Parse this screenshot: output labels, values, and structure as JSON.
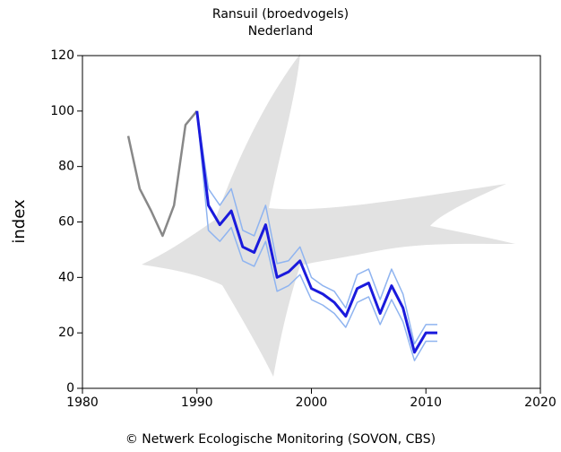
{
  "chart_data": {
    "type": "line",
    "title": "Ransuil (broedvogels)",
    "subtitle": "Nederland",
    "ylabel": "index",
    "footer": "© Netwerk Ecologische Monitoring (SOVON, CBS)",
    "xlim": [
      1980,
      2020
    ],
    "xticks": [
      1980,
      1990,
      2000,
      2010,
      2020
    ],
    "ylim": [
      0,
      120
    ],
    "yticks": [
      0,
      20,
      40,
      60,
      80,
      100,
      120
    ],
    "series": [
      {
        "color": "#888888",
        "width": 2.5,
        "x": [
          1984,
          1985,
          1986,
          1987,
          1988,
          1989,
          1990
        ],
        "values": [
          91,
          72,
          64,
          55,
          66,
          95,
          100
        ]
      },
      {
        "color": "#8fb4f0",
        "width": 1.5,
        "x": [
          1990,
          1991,
          1992,
          1993,
          1994,
          1995,
          1996,
          1997,
          1998,
          1999,
          2000,
          2001,
          2002,
          2003,
          2004,
          2005,
          2006,
          2007,
          2008,
          2009,
          2010,
          2011
        ],
        "values": [
          100,
          72,
          66,
          72,
          57,
          55,
          66,
          45,
          46,
          51,
          40,
          37,
          35,
          29,
          41,
          43,
          32,
          43,
          34,
          16,
          23,
          23
        ]
      },
      {
        "color": "#8fb4f0",
        "width": 1.5,
        "x": [
          1990,
          1991,
          1992,
          1993,
          1994,
          1995,
          1996,
          1997,
          1998,
          1999,
          2000,
          2001,
          2002,
          2003,
          2004,
          2005,
          2006,
          2007,
          2008,
          2009,
          2010,
          2011
        ],
        "values": [
          100,
          57,
          53,
          58,
          46,
          44,
          53,
          35,
          37,
          41,
          32,
          30,
          27,
          22,
          31,
          33,
          23,
          32,
          24,
          10,
          17,
          17
        ]
      },
      {
        "color": "#1a1adc",
        "width": 3,
        "x": [
          1990,
          1991,
          1992,
          1993,
          1994,
          1995,
          1996,
          1997,
          1998,
          1999,
          2000,
          2001,
          2002,
          2003,
          2004,
          2005,
          2006,
          2007,
          2008,
          2009,
          2010,
          2011
        ],
        "values": [
          100,
          66,
          59,
          64,
          51,
          49,
          59,
          40,
          42,
          46,
          36,
          34,
          31,
          26,
          36,
          38,
          27,
          37,
          29,
          13,
          20,
          20
        ]
      }
    ]
  }
}
